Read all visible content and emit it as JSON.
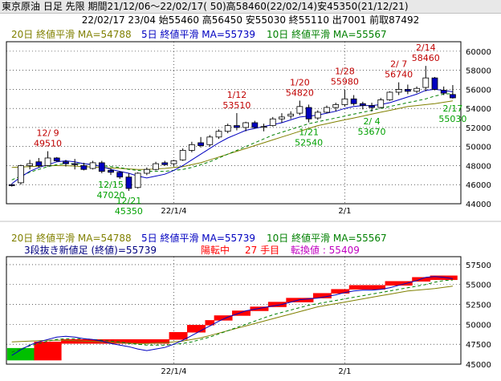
{
  "header": {
    "line1": "東京原油 日足 先限 期間21/12/06～22/02/17( 50)高58460(22/02/14)安45350(21/12/21)",
    "line2": "22/02/17 23/04 始55460 高56450 安55030 終55110 出7001 前取87492"
  },
  "colors": {
    "up": "#ffffff",
    "down": "#0000c0",
    "ma20": "#808000",
    "ma5": "#0000c0",
    "ma10": "#008000",
    "high_label": "#c00000",
    "low_label": "#00a000",
    "kagi_up": "#ff0000",
    "kagi_down": "#00c000",
    "conv": "#c000c0"
  },
  "legend_top": {
    "ma20": "20日 終値平滑 MA=54788",
    "ma5": "5日 終値平滑 MA=55739",
    "ma10": "10日 終値平滑 MA=55567"
  },
  "legend_bottom": {
    "ma20": "20日 終値平滑 MA=54788",
    "ma5": "5日 終値平滑 MA=55739",
    "ma10": "10日 終値平滑 MA=55567",
    "kagi_title": "3段抜き新値足 (終値)=55739",
    "kagi_state": "陽転中",
    "kagi_count": "27 手目",
    "kagi_conv": "転換値 : 55409"
  },
  "chart_data": [
    {
      "type": "candlestick",
      "ylim": [
        44000,
        61000
      ],
      "yticks": [
        "60000",
        "58000",
        "56000",
        "54000",
        "52000",
        "50000",
        "48000",
        "46000",
        "44000"
      ],
      "xticks": [
        "22/1/4",
        "2/1"
      ],
      "xtick_index": [
        18,
        37
      ],
      "ohlc": [
        [
          46000,
          46100,
          45800,
          45900
        ],
        [
          46200,
          48100,
          46000,
          48000
        ],
        [
          48000,
          48600,
          47600,
          48200
        ],
        [
          48400,
          48800,
          47800,
          48000
        ],
        [
          48000,
          49510,
          47900,
          48800
        ],
        [
          48800,
          48900,
          48400,
          48500
        ],
        [
          48400,
          48600,
          47900,
          48200
        ],
        [
          48200,
          48700,
          47600,
          48100
        ],
        [
          48000,
          48300,
          47500,
          47600
        ],
        [
          47700,
          48500,
          47600,
          48300
        ],
        [
          48300,
          48500,
          47200,
          47400
        ],
        [
          47500,
          47700,
          47020,
          47300
        ],
        [
          47300,
          47400,
          46600,
          46800
        ],
        [
          46800,
          47200,
          45350,
          45600
        ],
        [
          45700,
          47300,
          45600,
          47200
        ],
        [
          47200,
          47800,
          47000,
          47600
        ],
        [
          47600,
          48400,
          47500,
          48200
        ],
        [
          48300,
          48500,
          48000,
          48100
        ],
        [
          48200,
          48600,
          47900,
          48500
        ],
        [
          48600,
          49800,
          48500,
          49600
        ],
        [
          49600,
          50500,
          49400,
          50200
        ],
        [
          50400,
          51000,
          49900,
          50100
        ],
        [
          50200,
          51200,
          50000,
          51000
        ],
        [
          51000,
          51800,
          50800,
          51600
        ],
        [
          51600,
          52400,
          51400,
          52200
        ],
        [
          52200,
          53510,
          51700,
          52000
        ],
        [
          52000,
          52600,
          51600,
          52500
        ],
        [
          52500,
          52700,
          51900,
          52000
        ],
        [
          52100,
          52400,
          51600,
          52100
        ],
        [
          52200,
          53100,
          52100,
          52900
        ],
        [
          52900,
          53500,
          52500,
          53100
        ],
        [
          53200,
          53700,
          52900,
          53400
        ],
        [
          53500,
          54820,
          53300,
          54200
        ],
        [
          54100,
          54400,
          52540,
          52900
        ],
        [
          53000,
          53800,
          52800,
          53600
        ],
        [
          53600,
          54300,
          53500,
          54100
        ],
        [
          54100,
          54600,
          53700,
          54400
        ],
        [
          54400,
          55980,
          54200,
          55000
        ],
        [
          55000,
          55400,
          54300,
          54500
        ],
        [
          54500,
          54700,
          53900,
          54300
        ],
        [
          54300,
          54600,
          53670,
          54100
        ],
        [
          54100,
          55100,
          54000,
          54900
        ],
        [
          54900,
          55800,
          54800,
          55700
        ],
        [
          55700,
          56740,
          55400,
          56000
        ],
        [
          56000,
          56500,
          55500,
          55800
        ],
        [
          55800,
          56300,
          55600,
          56100
        ],
        [
          56200,
          58460,
          55800,
          57200
        ],
        [
          57200,
          57300,
          55900,
          56000
        ],
        [
          55900,
          56300,
          55400,
          55600
        ],
        [
          55460,
          56450,
          55030,
          55110
        ]
      ],
      "ma5": [
        46100,
        46800,
        47400,
        47800,
        48100,
        48400,
        48500,
        48400,
        48200,
        48100,
        47900,
        47600,
        47400,
        47200,
        46900,
        46700,
        46900,
        47100,
        47500,
        48000,
        48600,
        49200,
        49800,
        50400,
        50900,
        51300,
        51700,
        51900,
        52100,
        52300,
        52500,
        52800,
        53100,
        53200,
        53300,
        53500,
        53700,
        54000,
        54200,
        54300,
        54300,
        54400,
        54600,
        54900,
        55200,
        55500,
        55900,
        56000,
        55900,
        55739
      ],
      "ma10": [
        46500,
        46900,
        47300,
        47600,
        47900,
        48100,
        48200,
        48200,
        48200,
        48100,
        48000,
        47900,
        47800,
        47600,
        47500,
        47400,
        47400,
        47400,
        47500,
        47600,
        47800,
        48100,
        48400,
        48800,
        49200,
        49600,
        50000,
        50400,
        50800,
        51200,
        51500,
        51800,
        52100,
        52400,
        52600,
        52800,
        53000,
        53200,
        53400,
        53600,
        53800,
        54000,
        54200,
        54400,
        54600,
        54800,
        55000,
        55300,
        55500,
        55567
      ],
      "ma20": [
        47800,
        47850,
        47900,
        47950,
        48000,
        48000,
        48000,
        47950,
        47900,
        47850,
        47800,
        47750,
        47700,
        47650,
        47600,
        47600,
        47650,
        47700,
        47800,
        47900,
        48100,
        48300,
        48600,
        48900,
        49200,
        49500,
        49800,
        50100,
        50400,
        50700,
        51000,
        51300,
        51600,
        51900,
        52200,
        52400,
        52600,
        52800,
        53000,
        53200,
        53400,
        53600,
        53800,
        54000,
        54200,
        54300,
        54400,
        54500,
        54650,
        54788
      ],
      "annotations": [
        {
          "idx": 4,
          "kind": "high",
          "date": "12/ 9",
          "value": "49510"
        },
        {
          "idx": 11,
          "kind": "low",
          "date": "12/15",
          "value": "47020"
        },
        {
          "idx": 13,
          "kind": "low",
          "date": "12/21",
          "value": "45350"
        },
        {
          "idx": 25,
          "kind": "high",
          "date": "1/12",
          "value": "53510"
        },
        {
          "idx": 32,
          "kind": "high",
          "date": "1/20",
          "value": "54820"
        },
        {
          "idx": 33,
          "kind": "low",
          "date": "1/21",
          "value": "52540"
        },
        {
          "idx": 37,
          "kind": "high",
          "date": "1/28",
          "value": "55980"
        },
        {
          "idx": 40,
          "kind": "low",
          "date": "2/ 4",
          "value": "53670"
        },
        {
          "idx": 43,
          "kind": "high",
          "date": "2/ 7",
          "value": "56740"
        },
        {
          "idx": 46,
          "kind": "high",
          "date": "2/14",
          "value": "58460"
        },
        {
          "idx": 49,
          "kind": "low",
          "date": "2/17",
          "value": "55030"
        }
      ]
    },
    {
      "type": "bar",
      "ylim": [
        45000,
        58500
      ],
      "yticks": [
        "57500",
        "55000",
        "52500",
        "50000",
        "47500",
        "45000"
      ],
      "xticks": [
        "22/1/4",
        "2/1"
      ],
      "xtick_index": [
        18,
        37
      ],
      "bricks": [
        {
          "from": 0,
          "to": 2,
          "low": 45500,
          "high": 47000,
          "dir": "down"
        },
        {
          "from": 3,
          "to": 5,
          "low": 45500,
          "high": 47800,
          "dir": "up"
        },
        {
          "from": 6,
          "to": 17,
          "low": 47600,
          "high": 48100,
          "dir": "up"
        },
        {
          "from": 18,
          "to": 19,
          "low": 48100,
          "high": 49000,
          "dir": "up"
        },
        {
          "from": 20,
          "to": 21,
          "low": 49000,
          "high": 49900,
          "dir": "up"
        },
        {
          "from": 22,
          "to": 22,
          "low": 49900,
          "high": 50500,
          "dir": "up"
        },
        {
          "from": 23,
          "to": 24,
          "low": 50500,
          "high": 51100,
          "dir": "up"
        },
        {
          "from": 25,
          "to": 26,
          "low": 51100,
          "high": 51700,
          "dir": "up"
        },
        {
          "from": 27,
          "to": 28,
          "low": 51700,
          "high": 52200,
          "dir": "up"
        },
        {
          "from": 29,
          "to": 30,
          "low": 52200,
          "high": 52800,
          "dir": "up"
        },
        {
          "from": 31,
          "to": 33,
          "low": 52800,
          "high": 53300,
          "dir": "up"
        },
        {
          "from": 34,
          "to": 35,
          "low": 53300,
          "high": 53900,
          "dir": "up"
        },
        {
          "from": 36,
          "to": 37,
          "low": 53900,
          "high": 54400,
          "dir": "up"
        },
        {
          "from": 38,
          "to": 41,
          "low": 54400,
          "high": 54900,
          "dir": "up"
        },
        {
          "from": 42,
          "to": 44,
          "low": 54900,
          "high": 55400,
          "dir": "up"
        },
        {
          "from": 45,
          "to": 46,
          "low": 55400,
          "high": 55900,
          "dir": "up"
        },
        {
          "from": 47,
          "to": 49,
          "low": 55600,
          "high": 56100,
          "dir": "up"
        }
      ]
    }
  ]
}
